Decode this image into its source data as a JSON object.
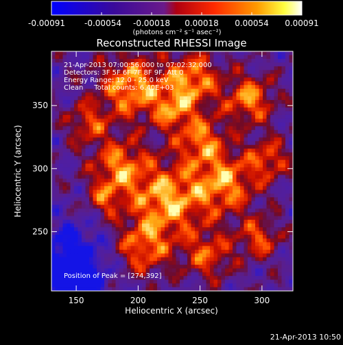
{
  "colorbar": {
    "ticks": [
      "-0.00091",
      "-0.00054",
      "-0.00018",
      "0.00018",
      "0.00054",
      "0.00091"
    ],
    "units": "(photons cm⁻² s⁻¹ asec⁻²)",
    "colors": [
      "#0000ff",
      "#4b0082",
      "#8b00ff",
      "#ff0000",
      "#ff8c00",
      "#ffff00",
      "#ffffff"
    ]
  },
  "chart_data": {
    "type": "heatmap",
    "title": "Reconstructed RHESSI Image",
    "xlabel": "Heliocentric X (arcsec)",
    "ylabel": "Heliocentric Y (arcsec)",
    "xlim": [
      130,
      325
    ],
    "ylim": [
      203,
      393
    ],
    "x_ticks": [
      150,
      200,
      250,
      300
    ],
    "y_ticks": [
      250,
      300,
      350
    ],
    "annotations": [
      "21-Apr-2013 07:00:56.000 to 07:02:32.000",
      "Detectors: 3F 5F 6F 7F 8F 9F, Att 0",
      "Energy Range: 12.0 - 25.0 keV",
      "Clean     Total counts: 6.40E+03",
      "Position of Peak = [274,392]"
    ],
    "peak": [
      274,
      392
    ],
    "vmin": -0.00091,
    "vmax": 0.00091
  },
  "footer": {
    "timestamp": "21-Apr-2013 10:50"
  }
}
